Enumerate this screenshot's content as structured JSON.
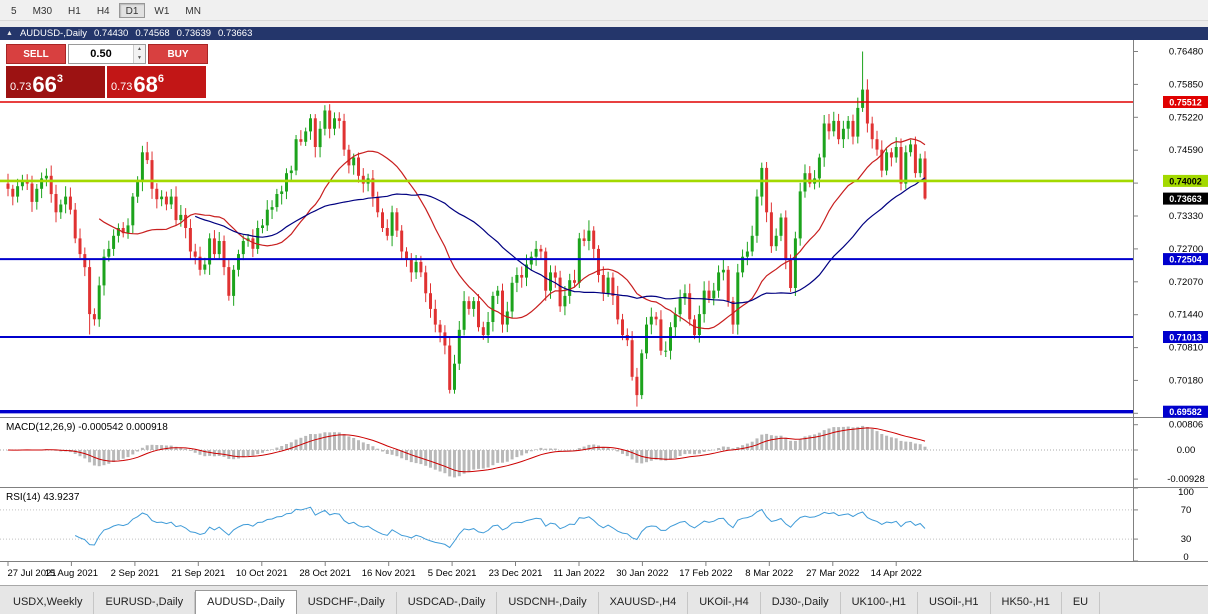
{
  "timeframe_toolbar": {
    "buttons": [
      "5",
      "M30",
      "H1",
      "H4",
      "D1",
      "W1",
      "MN"
    ],
    "selected": "D1"
  },
  "chart_header": {
    "symbol": "AUDUSD-,Daily",
    "open": "0.74430",
    "high": "0.74568",
    "low": "0.73639",
    "close": "0.73663"
  },
  "trade_panel": {
    "sell_label": "SELL",
    "buy_label": "BUY",
    "volume": "0.50",
    "sell_price_prefix": "0.73",
    "sell_price_big": "66",
    "sell_price_sup": "3",
    "buy_price_prefix": "0.73",
    "buy_price_big": "68",
    "buy_price_sup": "6"
  },
  "price_axis": {
    "ticks": [
      "0.76480",
      "0.75850",
      "0.75220",
      "0.74590",
      "0.73960",
      "0.73330",
      "0.72700",
      "0.72070",
      "0.71440",
      "0.70810",
      "0.70180",
      "0.69550"
    ]
  },
  "macd": {
    "label": "MACD(12,26,9) -0.000542 0.000918",
    "ticks": [
      0.00806,
      0,
      -0.00928
    ],
    "tick_labels": [
      "0.00806",
      "0.00",
      "-0.00928"
    ],
    "histogram_color": "#b9b9b9",
    "signal_color": "#cc0000"
  },
  "rsi": {
    "label": "RSI(14) 43.9237",
    "ticks": [
      100,
      70,
      30,
      0
    ],
    "levels": [
      70,
      30
    ],
    "line_color": "#3f9bd8"
  },
  "chart_data": {
    "type": "candlestick",
    "symbol": "AUDUSD",
    "timeframe": "Daily",
    "price_range": {
      "min": 0.6948,
      "max": 0.767
    },
    "x_labels": [
      "27 Jul 2021",
      "15 Aug 2021",
      "2 Sep 2021",
      "21 Sep 2021",
      "10 Oct 2021",
      "28 Oct 2021",
      "16 Nov 2021",
      "5 Dec 2021",
      "23 Dec 2021",
      "11 Jan 2022",
      "30 Jan 2022",
      "17 Feb 2022",
      "8 Mar 2022",
      "27 Mar 2022",
      "14 Apr 2022"
    ],
    "closes": [
      0.7385,
      0.737,
      0.739,
      0.74,
      0.7395,
      0.736,
      0.7385,
      0.7405,
      0.741,
      0.7375,
      0.734,
      0.7355,
      0.737,
      0.7345,
      0.729,
      0.726,
      0.7235,
      0.7145,
      0.7135,
      0.72,
      0.7255,
      0.727,
      0.7295,
      0.731,
      0.73,
      0.7315,
      0.737,
      0.74,
      0.7455,
      0.744,
      0.7385,
      0.7365,
      0.737,
      0.7355,
      0.737,
      0.7325,
      0.7335,
      0.731,
      0.7265,
      0.7255,
      0.723,
      0.724,
      0.729,
      0.726,
      0.7285,
      0.7235,
      0.718,
      0.723,
      0.726,
      0.7285,
      0.729,
      0.727,
      0.731,
      0.7315,
      0.7345,
      0.735,
      0.7375,
      0.738,
      0.7415,
      0.742,
      0.748,
      0.7475,
      0.7495,
      0.752,
      0.7465,
      0.75,
      0.7535,
      0.75,
      0.752,
      0.7515,
      0.746,
      0.743,
      0.7445,
      0.741,
      0.7395,
      0.7405,
      0.737,
      0.734,
      0.731,
      0.7295,
      0.734,
      0.7305,
      0.7265,
      0.725,
      0.7225,
      0.7245,
      0.7225,
      0.7185,
      0.7155,
      0.7125,
      0.711,
      0.7085,
      0.7,
      0.705,
      0.7115,
      0.717,
      0.7155,
      0.717,
      0.712,
      0.7105,
      0.713,
      0.718,
      0.719,
      0.7125,
      0.715,
      0.7205,
      0.722,
      0.7215,
      0.724,
      0.7255,
      0.727,
      0.7265,
      0.719,
      0.7225,
      0.7215,
      0.716,
      0.718,
      0.721,
      0.7205,
      0.729,
      0.7285,
      0.7305,
      0.727,
      0.722,
      0.7185,
      0.7215,
      0.718,
      0.7135,
      0.7105,
      0.7095,
      0.7025,
      0.699,
      0.707,
      0.7125,
      0.714,
      0.7135,
      0.7075,
      0.7075,
      0.712,
      0.7145,
      0.7175,
      0.7185,
      0.7135,
      0.7105,
      0.7145,
      0.719,
      0.7175,
      0.719,
      0.7225,
      0.723,
      0.717,
      0.7125,
      0.7225,
      0.7255,
      0.7265,
      0.7295,
      0.737,
      0.7425,
      0.734,
      0.7275,
      0.7295,
      0.733,
      0.725,
      0.7195,
      0.729,
      0.738,
      0.7415,
      0.7395,
      0.7405,
      0.7445,
      0.751,
      0.7495,
      0.7515,
      0.748,
      0.75,
      0.7515,
      0.7485,
      0.754,
      0.7575,
      0.751,
      0.748,
      0.746,
      0.742,
      0.7455,
      0.7445,
      0.7465,
      0.7395,
      0.7455,
      0.747,
      0.7415,
      0.7443,
      0.73663
    ],
    "wick_overrides": {
      "17": {
        "low": 0.7106
      },
      "92": {
        "low": 0.6993
      },
      "131": {
        "low": 0.6968
      },
      "178": {
        "high": 0.7648
      },
      "191": {
        "high": 0.74568,
        "low": 0.73639
      }
    },
    "levels": [
      {
        "price": 0.75512,
        "label": "0.75512",
        "color": "#e00000",
        "width": 1.6,
        "badge_fg": "#ffffff"
      },
      {
        "price": 0.74002,
        "label": "0.74002",
        "color": "#a3d900",
        "width": 2.6,
        "badge_fg": "#000000"
      },
      {
        "price": 0.72504,
        "label": "0.72504",
        "color": "#0000cd",
        "width": 2,
        "badge_fg": "#ffffff"
      },
      {
        "price": 0.71013,
        "label": "0.71013",
        "color": "#0000cd",
        "width": 2,
        "badge_fg": "#ffffff"
      },
      {
        "price": 0.69582,
        "label": "0.69582",
        "color": "#0000cd",
        "width": 3.4,
        "badge_fg": "#ffffff"
      }
    ],
    "current_price": {
      "value": 0.73663,
      "label": "0.73663",
      "badge_bg": "#000000",
      "badge_fg": "#ffffff"
    },
    "candle_up_color": "#1ca31c",
    "candle_down_color": "#e03232",
    "moving_averages": [
      {
        "type": "sma",
        "period": 20,
        "color": "#c81e1e"
      },
      {
        "type": "sma",
        "period": 40,
        "color": "#000080"
      }
    ]
  },
  "tabs": [
    {
      "label": "USDX,Weekly",
      "active": false
    },
    {
      "label": "EURUSD-,Daily",
      "active": false
    },
    {
      "label": "AUDUSD-,Daily",
      "active": true
    },
    {
      "label": "USDCHF-,Daily",
      "active": false
    },
    {
      "label": "USDCAD-,Daily",
      "active": false
    },
    {
      "label": "USDCNH-,Daily",
      "active": false
    },
    {
      "label": "XAUUSD-,H4",
      "active": false
    },
    {
      "label": "UKOil-,H4",
      "active": false
    },
    {
      "label": "DJ30-,Daily",
      "active": false
    },
    {
      "label": "UK100-,H1",
      "active": false
    },
    {
      "label": "USOil-,H1",
      "active": false
    },
    {
      "label": "HK50-,H1",
      "active": false
    },
    {
      "label": "EU",
      "active": false
    }
  ]
}
